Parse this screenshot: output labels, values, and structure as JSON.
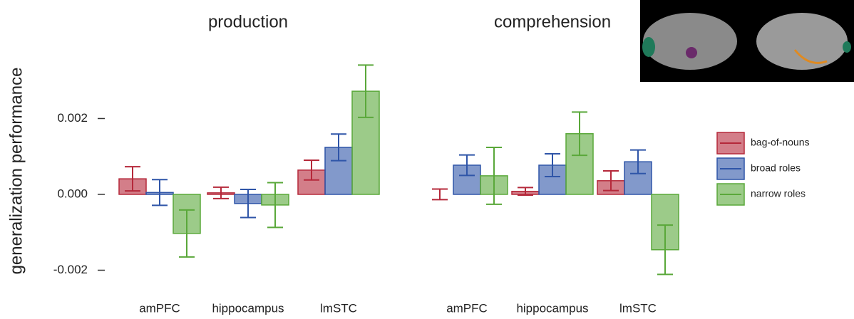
{
  "chart_data": {
    "type": "bar",
    "ylabel": "generalization performance",
    "ylim": [
      -0.0024,
      0.0038
    ],
    "yticks": [
      {
        "value": -0.002,
        "label": "-0.002"
      },
      {
        "value": 0,
        "label": "0.000"
      },
      {
        "value": 0.002,
        "label": "0.002"
      }
    ],
    "series": [
      {
        "name": "bag-of-nouns",
        "color": "#b5283a"
      },
      {
        "name": "broad roles",
        "color": "#2f55a8"
      },
      {
        "name": "narrow roles",
        "color": "#5aa83a"
      }
    ],
    "panels": [
      {
        "title": "production",
        "categories": [
          "amPFC",
          "hippocampus",
          "lmSTC"
        ],
        "series": [
          {
            "values": [
              0.00041,
              4e-05,
              0.00064
            ],
            "errors": [
              0.00032,
              0.00015,
              0.00026
            ]
          },
          {
            "values": [
              5e-05,
              -0.00024,
              0.00124
            ],
            "errors": [
              0.00034,
              0.00037,
              0.00035
            ]
          },
          {
            "values": [
              -0.00103,
              -0.00028,
              0.00272
            ],
            "errors": [
              0.00062,
              0.00059,
              0.00069
            ]
          }
        ]
      },
      {
        "title": "comprehension",
        "categories": [
          "amPFC",
          "hippocampus",
          "lmSTC"
        ],
        "series": [
          {
            "values": [
              0,
              8e-05,
              0.00036
            ],
            "errors": [
              0.00014,
              0.0001,
              0.00026
            ]
          },
          {
            "values": [
              0.00077,
              0.00077,
              0.00086
            ],
            "errors": [
              0.00027,
              0.0003,
              0.00031
            ]
          },
          {
            "values": [
              0.00049,
              0.0016,
              -0.00146
            ],
            "errors": [
              0.00075,
              0.00057,
              0.00065
            ]
          }
        ]
      }
    ]
  }
}
